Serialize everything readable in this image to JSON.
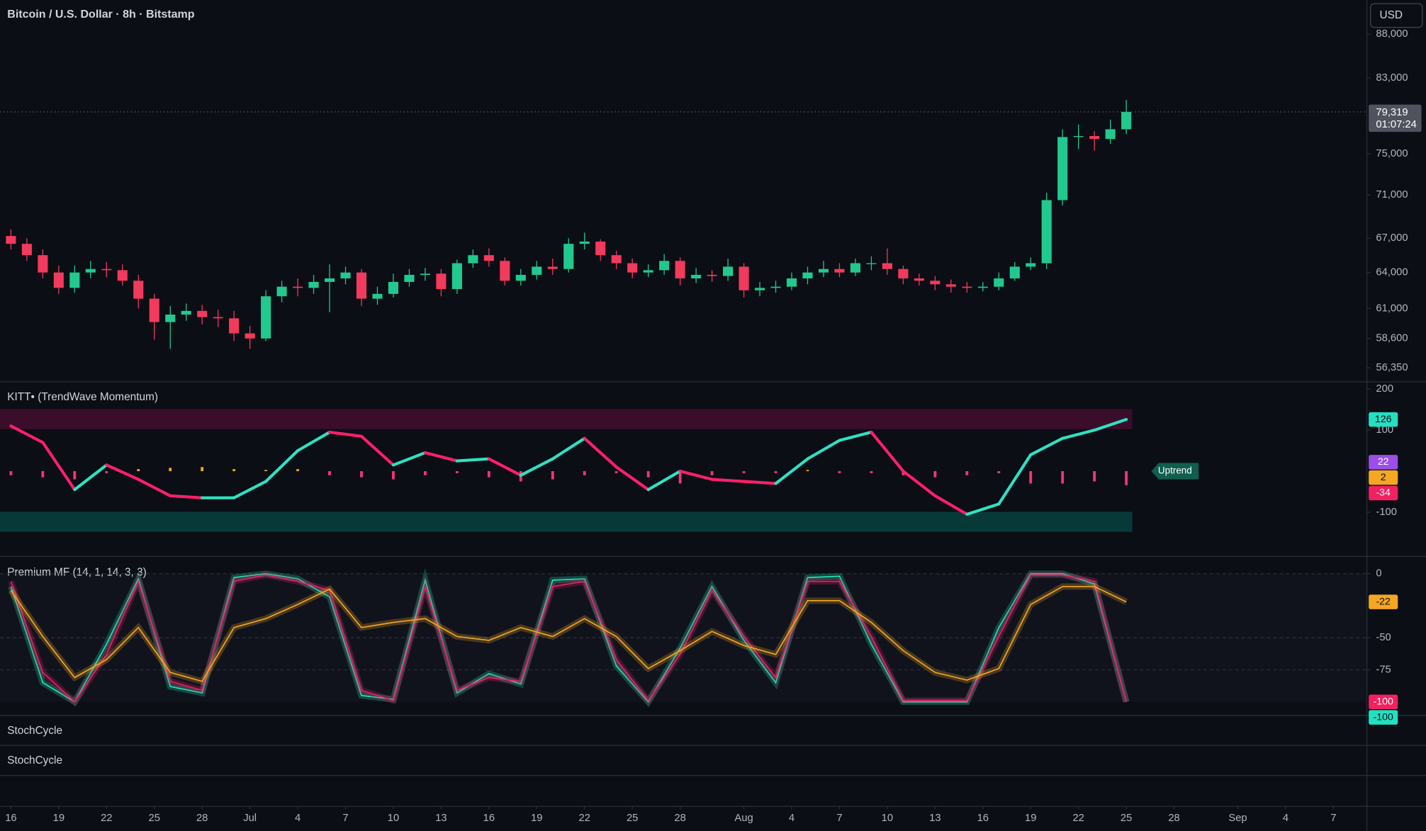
{
  "header": {
    "title": "Bitcoin / U.S. Dollar · 8h · Bitstamp",
    "currency": "USD"
  },
  "chart_data": [
    {
      "type": "candlestick",
      "x": [
        0,
        1,
        2,
        3,
        4,
        5,
        6,
        7,
        8,
        9,
        10,
        11,
        12,
        13,
        14,
        15,
        16,
        17,
        18,
        19,
        20,
        21,
        22,
        23,
        24,
        25,
        26,
        27,
        28,
        29,
        30,
        31,
        32,
        33,
        34,
        35,
        36,
        37,
        38,
        39,
        40,
        41,
        42,
        43,
        44,
        45,
        46,
        47,
        48,
        49,
        50,
        51,
        52,
        53,
        54,
        55,
        56,
        57,
        58,
        59,
        60,
        61,
        62,
        63,
        64,
        65,
        66,
        67,
        68,
        69,
        70
      ],
      "open": [
        67200,
        66500,
        65500,
        64000,
        62700,
        64000,
        64300,
        64200,
        63300,
        61800,
        59900,
        60500,
        60800,
        60300,
        60200,
        59000,
        58600,
        62000,
        62800,
        62700,
        63200,
        63500,
        64000,
        61800,
        62200,
        63200,
        63800,
        63900,
        62600,
        64800,
        65500,
        65000,
        63300,
        63800,
        64500,
        64300,
        66500,
        66700,
        65500,
        64800,
        64000,
        64200,
        65000,
        63500,
        63800,
        63700,
        64500,
        62500,
        62700,
        62800,
        63500,
        64000,
        64300,
        64000,
        64800,
        64800,
        64300,
        63500,
        63300,
        63000,
        62800,
        62700,
        62800,
        63500,
        64500,
        64800,
        70500,
        76700,
        76800,
        76500,
        77500
      ],
      "high": [
        67800,
        67000,
        66000,
        64600,
        64600,
        65000,
        64900,
        64700,
        63800,
        62200,
        61200,
        61400,
        61300,
        60900,
        60800,
        59600,
        62500,
        63300,
        63500,
        63800,
        64700,
        64500,
        64300,
        62800,
        63900,
        64300,
        64400,
        64300,
        65100,
        66000,
        66100,
        65300,
        64300,
        65000,
        65200,
        67000,
        67500,
        66900,
        65900,
        65200,
        64700,
        65600,
        65300,
        64400,
        64200,
        65200,
        64800,
        63200,
        63300,
        64000,
        64500,
        65000,
        64800,
        65200,
        65400,
        66100,
        64600,
        63900,
        63700,
        63400,
        63200,
        63200,
        64000,
        64900,
        65300,
        71200,
        77500,
        78000,
        77300,
        78500,
        80600
      ],
      "low": [
        66000,
        65000,
        63500,
        62200,
        62300,
        63500,
        63600,
        62900,
        61000,
        58500,
        57800,
        60000,
        59700,
        59500,
        58400,
        57800,
        58400,
        61500,
        62000,
        62200,
        60700,
        63000,
        61200,
        61300,
        61900,
        62800,
        63300,
        62000,
        62200,
        64400,
        64500,
        62900,
        62900,
        63400,
        63800,
        64000,
        66000,
        65000,
        64300,
        63500,
        63600,
        63800,
        62900,
        63100,
        63200,
        63300,
        61900,
        62000,
        62300,
        62500,
        63000,
        63600,
        63600,
        63700,
        64200,
        63800,
        63000,
        62900,
        62500,
        62300,
        62300,
        62400,
        62500,
        63300,
        64200,
        64300,
        70000,
        75500,
        75300,
        76000,
        77000
      ],
      "close": [
        66500,
        65500,
        64000,
        62700,
        64000,
        64300,
        64200,
        63300,
        61800,
        59900,
        60500,
        60800,
        60300,
        60200,
        59000,
        58600,
        62000,
        62800,
        62700,
        63200,
        63500,
        64000,
        61800,
        62200,
        63200,
        63800,
        63900,
        62600,
        64800,
        65500,
        65000,
        63300,
        63800,
        64500,
        64300,
        66500,
        66700,
        65500,
        64800,
        64000,
        64200,
        65000,
        63500,
        63800,
        63700,
        64500,
        62500,
        62700,
        62800,
        63500,
        64000,
        64300,
        64000,
        64800,
        64800,
        64300,
        63500,
        63300,
        63000,
        62800,
        62700,
        62800,
        63500,
        64500,
        64800,
        70500,
        76700,
        76800,
        76500,
        77500,
        79319
      ],
      "up_color": "#21c98f",
      "down_color": "#f23a5c",
      "log_scale": true,
      "ylim": [
        55300,
        92100
      ],
      "yticks": [
        {
          "value": 88000,
          "label": "88,000"
        },
        {
          "value": 83000,
          "label": "83,000"
        },
        {
          "value": 75000,
          "label": "75,000"
        },
        {
          "value": 71000,
          "label": "71,000"
        },
        {
          "value": 67000,
          "label": "67,000"
        },
        {
          "value": 64000,
          "label": "64,000"
        },
        {
          "value": 61000,
          "label": "61,000"
        },
        {
          "value": 58600,
          "label": "58,600"
        },
        {
          "value": 56350,
          "label": "56,350"
        }
      ],
      "xlim": [
        -0.685,
        85.1
      ],
      "xticks": [
        {
          "value": 0,
          "label": "16"
        },
        {
          "value": 3,
          "label": "19"
        },
        {
          "value": 6,
          "label": "22"
        },
        {
          "value": 9,
          "label": "25"
        },
        {
          "value": 12,
          "label": "28"
        },
        {
          "value": 15,
          "label": "Jul"
        },
        {
          "value": 18,
          "label": "4"
        },
        {
          "value": 21,
          "label": "7"
        },
        {
          "value": 24,
          "label": "10"
        },
        {
          "value": 27,
          "label": "13"
        },
        {
          "value": 30,
          "label": "16"
        },
        {
          "value": 33,
          "label": "19"
        },
        {
          "value": 36,
          "label": "22"
        },
        {
          "value": 39,
          "label": "25"
        },
        {
          "value": 42,
          "label": "28"
        },
        {
          "value": 46,
          "label": "Aug"
        },
        {
          "value": 49,
          "label": "4"
        },
        {
          "value": 52,
          "label": "7"
        },
        {
          "value": 55,
          "label": "10"
        },
        {
          "value": 58,
          "label": "13"
        },
        {
          "value": 61,
          "label": "16"
        },
        {
          "value": 64,
          "label": "19"
        },
        {
          "value": 67,
          "label": "22"
        },
        {
          "value": 70,
          "label": "25"
        },
        {
          "value": 73,
          "label": "28"
        },
        {
          "value": 77,
          "label": "Sep"
        },
        {
          "value": 80,
          "label": "4"
        },
        {
          "value": 83,
          "label": "7"
        }
      ],
      "last_price": {
        "value": 79319,
        "label": "79,319"
      },
      "countdown": "01:07:24"
    },
    {
      "type": "line",
      "title": "KITT• (TrendWave Momentum)",
      "x": [
        0,
        2,
        4,
        6,
        8,
        10,
        12,
        14,
        16,
        18,
        20,
        22,
        24,
        26,
        28,
        30,
        32,
        34,
        36,
        38,
        40,
        42,
        44,
        46,
        48,
        50,
        52,
        54,
        56,
        58,
        60,
        62,
        64,
        66,
        68,
        70
      ],
      "series": [
        {
          "up_color": "#2de2c4",
          "down_color": "#ff1f6b",
          "values": [
            110,
            70,
            -45,
            15,
            -20,
            -60,
            -65,
            -65,
            -25,
            50,
            95,
            85,
            15,
            45,
            25,
            30,
            -10,
            30,
            80,
            10,
            -45,
            0,
            -20,
            -25,
            -30,
            30,
            75,
            95,
            0,
            -60,
            -105,
            -80,
            40,
            80,
            100,
            126
          ]
        }
      ],
      "histogram": {
        "up_color": "#f5a623",
        "down_color": "#f23672",
        "values": [
          -10,
          -15,
          -20,
          -5,
          5,
          8,
          10,
          5,
          3,
          5,
          -10,
          -15,
          -20,
          -10,
          -5,
          -15,
          -25,
          -20,
          -10,
          -5,
          -15,
          -30,
          -10,
          -5,
          -5,
          3,
          -5,
          -5,
          -10,
          -15,
          -10,
          -5,
          -30,
          -30,
          -25,
          -34
        ]
      },
      "ylim": [
        -207.7,
        217.6
      ],
      "yticks": [
        -100,
        100,
        200
      ],
      "badges": [
        {
          "value": 126,
          "color": "#22e0c0",
          "text_color": "#0b0e15"
        },
        {
          "value": 22,
          "color": "#9c4ee8",
          "text_color": "#ffffff"
        },
        {
          "value": 2,
          "color": "#f5a623",
          "text_color": "#0b0e15"
        },
        {
          "value": -34,
          "color": "#f2215f",
          "text_color": "#ffffff"
        }
      ],
      "status_label": "Uptrend"
    },
    {
      "type": "line",
      "title": "Premium MF (14, 1, 14, 3, 3)",
      "x": [
        0,
        2,
        4,
        6,
        8,
        10,
        12,
        14,
        16,
        18,
        20,
        22,
        24,
        26,
        28,
        30,
        32,
        34,
        36,
        38,
        40,
        42,
        44,
        46,
        48,
        50,
        52,
        54,
        56,
        58,
        60,
        62,
        64,
        66,
        68,
        70
      ],
      "series": [
        {
          "color": "#1de9b6",
          "values": [
            -10,
            -85,
            -100,
            -55,
            -4,
            -88,
            -93,
            -3,
            0,
            -4,
            -18,
            -95,
            -98,
            -5,
            -93,
            -78,
            -86,
            -5,
            -4,
            -72,
            -100,
            -58,
            -10,
            -52,
            -85,
            -3,
            -2,
            -55,
            -100,
            -100,
            -100,
            -42,
            0,
            0,
            -8,
            -100
          ]
        },
        {
          "color": "#e91e63",
          "values": [
            -6,
            -77,
            -100,
            -63,
            -6,
            -84,
            -91,
            -6,
            -1,
            -6,
            -13,
            -91,
            -99,
            -10,
            -91,
            -81,
            -84,
            -10,
            -6,
            -67,
            -99,
            -63,
            -13,
            -49,
            -81,
            -6,
            -6,
            -49,
            -99,
            -99,
            -99,
            -49,
            -1,
            -1,
            -6,
            -100
          ]
        },
        {
          "color": "#f5a623",
          "values": [
            -13,
            -49,
            -81,
            -67,
            -42,
            -77,
            -84,
            -42,
            -35,
            -24,
            -12,
            -42,
            -38,
            -35,
            -49,
            -52,
            -42,
            -49,
            -35,
            -49,
            -74,
            -60,
            -45,
            -56,
            -63,
            -21,
            -21,
            -38,
            -60,
            -77,
            -83,
            -74,
            -24,
            -10,
            -10,
            -22
          ]
        }
      ],
      "ylim": [
        -110.6,
        12.8
      ],
      "yticks": [
        0,
        -50,
        -75
      ],
      "badges": [
        {
          "value": -22,
          "color": "#f5a623",
          "text_color": "#0b0e15"
        },
        {
          "value": -100,
          "color": "#f2215f",
          "text_color": "#ffffff"
        },
        {
          "value": -100,
          "color": "#22e0c0",
          "text_color": "#0b0e15"
        }
      ]
    },
    {
      "type": "line",
      "title": "StochCycle"
    },
    {
      "type": "line",
      "title": "StochCycle"
    }
  ]
}
